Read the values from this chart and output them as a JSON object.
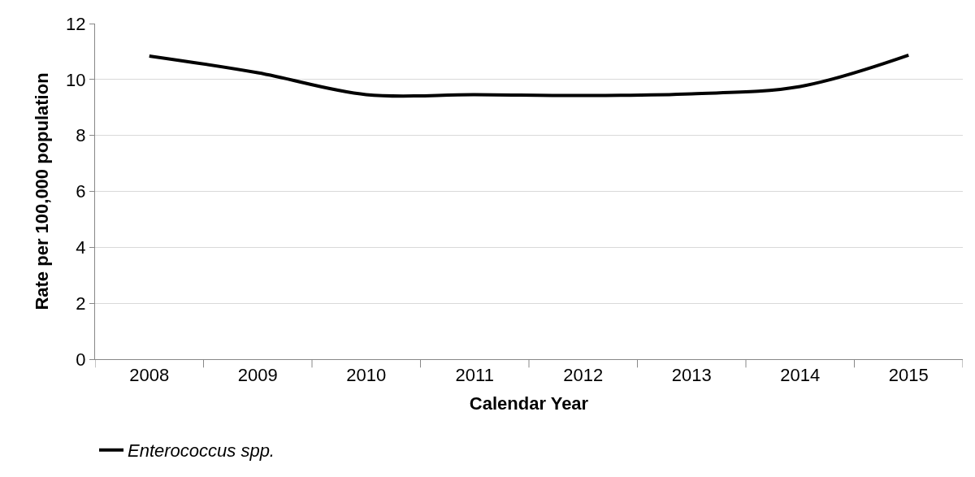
{
  "chart_data": {
    "type": "line",
    "xlabel": "Calendar Year",
    "ylabel": "Rate per 100,000 population",
    "categories": [
      "2008",
      "2009",
      "2010",
      "2011",
      "2012",
      "2013",
      "2014",
      "2015"
    ],
    "series": [
      {
        "name": "Enterococcus spp.",
        "color": "#000000",
        "values": [
          10.84,
          10.24,
          9.46,
          9.46,
          9.43,
          9.49,
          9.75,
          10.87
        ]
      }
    ],
    "ylim": [
      0,
      12
    ],
    "yticks": [
      0,
      2,
      4,
      6,
      8,
      10,
      12
    ],
    "grid": "y",
    "legend": "bottom left",
    "marker": "none",
    "line_style": "solid"
  }
}
